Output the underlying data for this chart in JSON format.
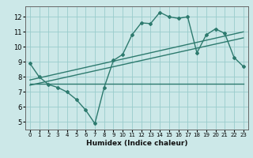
{
  "xlabel": "Humidex (Indice chaleur)",
  "background_color": "#cce8e8",
  "grid_color": "#99cccc",
  "line_color": "#2d7a6e",
  "xlim": [
    -0.5,
    23.5
  ],
  "ylim": [
    4.5,
    12.7
  ],
  "xticks": [
    0,
    1,
    2,
    3,
    4,
    5,
    6,
    7,
    8,
    9,
    10,
    11,
    12,
    13,
    14,
    15,
    16,
    17,
    18,
    19,
    20,
    21,
    22,
    23
  ],
  "yticks": [
    5,
    6,
    7,
    8,
    9,
    10,
    11,
    12
  ],
  "series1_x": [
    0,
    1,
    2,
    3,
    4,
    5,
    6,
    7,
    8,
    9,
    10,
    11,
    12,
    13,
    14,
    15,
    16,
    17,
    18,
    19,
    20,
    21,
    22,
    23
  ],
  "series1_y": [
    8.9,
    8.0,
    7.5,
    7.3,
    7.0,
    6.5,
    5.8,
    4.9,
    7.3,
    9.1,
    9.5,
    10.8,
    11.6,
    11.55,
    12.3,
    12.0,
    11.9,
    12.0,
    9.6,
    10.8,
    11.2,
    10.9,
    9.3,
    8.7
  ],
  "flat_line_x": [
    0,
    23
  ],
  "flat_line_y": [
    7.55,
    7.55
  ],
  "trend1_x": [
    0,
    23
  ],
  "trend1_y": [
    7.8,
    11.0
  ],
  "trend2_x": [
    0,
    23
  ],
  "trend2_y": [
    7.45,
    10.6
  ]
}
